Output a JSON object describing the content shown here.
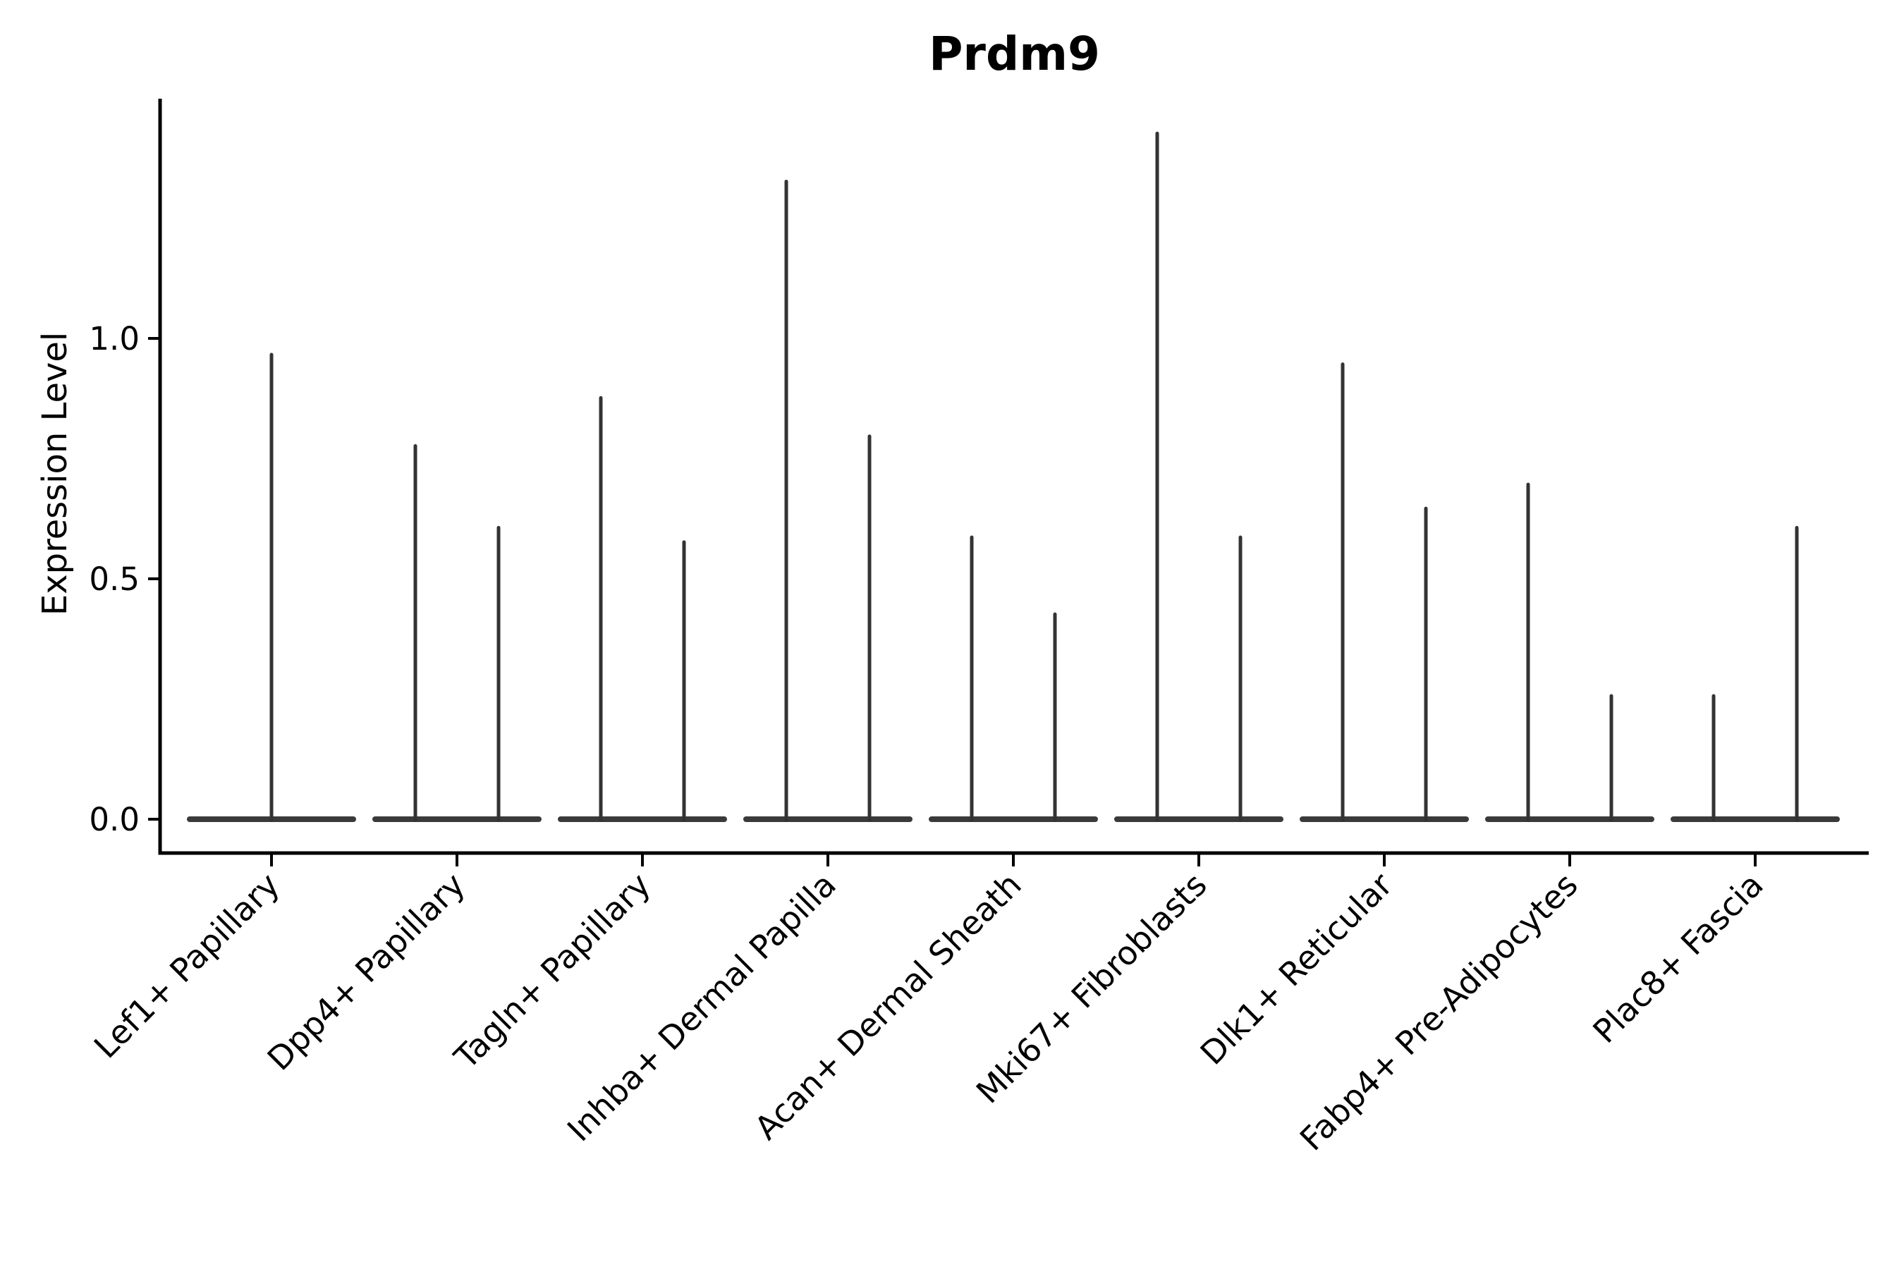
{
  "chart_data": {
    "type": "violin",
    "title": "Prdm9",
    "ylabel": "Expression Level",
    "xlabel": "",
    "legend": "none",
    "grid": false,
    "background": "#ffffff",
    "axis_color": "#000000",
    "violin_color": "#333333",
    "violin_base_color": "#3a3a3a",
    "ylim": [
      -0.07,
      1.5
    ],
    "yticks": [
      {
        "value": 0.0,
        "label": "0.0"
      },
      {
        "value": 0.5,
        "label": "0.5"
      },
      {
        "value": 1.0,
        "label": "1.0"
      }
    ],
    "categories": [
      "Lef1+ Papillary",
      "Dpp4+ Papillary",
      "Tagln+ Papillary",
      "Inhba+ Dermal Papilla",
      "Acan+ Dermal Sheath",
      "Mki67+ Fibroblasts",
      "Dlk1+ Reticular",
      "Fabp4+ Pre-Adipocytes",
      "Plac8+ Fascia"
    ],
    "violins": [
      {
        "category": "Lef1+ Papillary",
        "max_expression": [
          0.97
        ]
      },
      {
        "category": "Dpp4+ Papillary",
        "max_expression": [
          0.78,
          0.61
        ]
      },
      {
        "category": "Tagln+ Papillary",
        "max_expression": [
          0.88,
          0.58
        ]
      },
      {
        "category": "Inhba+ Dermal Papilla",
        "max_expression": [
          1.33,
          0.8
        ]
      },
      {
        "category": "Acan+ Dermal Sheath",
        "max_expression": [
          0.59,
          0.43
        ]
      },
      {
        "category": "Mki67+ Fibroblasts",
        "max_expression": [
          1.43,
          0.59
        ]
      },
      {
        "category": "Dlk1+ Reticular",
        "max_expression": [
          0.95,
          0.65
        ]
      },
      {
        "category": "Fabp4+ Pre-Adipocytes",
        "max_expression": [
          0.7,
          0.26
        ]
      },
      {
        "category": "Plac8+ Fascia",
        "max_expression": [
          0.26,
          0.61
        ]
      }
    ],
    "description": "Violin plot of Prdm9 expression per fibroblast subtype; density mass sits at 0 (wide flat base) with a thin spike rising to each violin's maximum expression value."
  }
}
